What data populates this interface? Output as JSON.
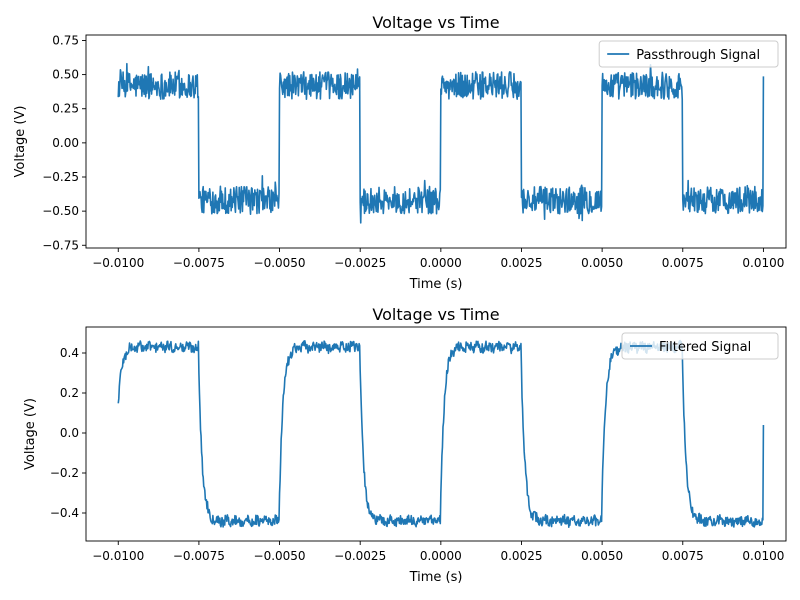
{
  "chart_data": [
    {
      "type": "line",
      "title": "Voltage vs Time",
      "xlabel": "Time (s)",
      "ylabel": "Voltage (V)",
      "xlim": [
        -0.011,
        0.0107
      ],
      "ylim": [
        -0.77,
        0.79
      ],
      "xticks": [
        -0.01,
        -0.0075,
        -0.005,
        -0.0025,
        0.0,
        0.0025,
        0.005,
        0.0075,
        0.01
      ],
      "xtick_labels": [
        "−0.0100",
        "−0.0075",
        "−0.0050",
        "−0.0025",
        "0.0000",
        "0.0025",
        "0.0050",
        "0.0075",
        "0.0100"
      ],
      "yticks": [
        -0.75,
        -0.5,
        -0.25,
        0.0,
        0.25,
        0.5,
        0.75
      ],
      "ytick_labels": [
        "−0.75",
        "−0.50",
        "−0.25",
        "0.00",
        "0.25",
        "0.50",
        "0.75"
      ],
      "grid": false,
      "legend": "top-right",
      "color": "#1f77b4",
      "series": [
        {
          "name": "Passthrough Signal",
          "model": "noisy square wave",
          "x_range": [
            -0.01,
            0.01
          ],
          "period": 0.005,
          "high_level": 0.42,
          "low_level": -0.42,
          "noise_amplitude": 0.1,
          "starts_with": "high"
        }
      ]
    },
    {
      "type": "line",
      "title": "Voltage vs Time",
      "xlabel": "Time (s)",
      "ylabel": "Voltage (V)",
      "xlim": [
        -0.011,
        0.0107
      ],
      "ylim": [
        -0.54,
        0.53
      ],
      "xticks": [
        -0.01,
        -0.0075,
        -0.005,
        -0.0025,
        0.0,
        0.0025,
        0.005,
        0.0075,
        0.01
      ],
      "xtick_labels": [
        "−0.0100",
        "−0.0075",
        "−0.0050",
        "−0.0025",
        "0.0000",
        "0.0025",
        "0.0050",
        "0.0075",
        "0.0100"
      ],
      "yticks": [
        -0.4,
        -0.2,
        0.0,
        0.2,
        0.4
      ],
      "ytick_labels": [
        "−0.4",
        "−0.2",
        "0.0",
        "0.2",
        "0.4"
      ],
      "grid": false,
      "legend": "top-right",
      "color": "#1f77b4",
      "series": [
        {
          "name": "Filtered Signal",
          "model": "low-pass filtered square wave",
          "x_range": [
            -0.01,
            0.01
          ],
          "period": 0.005,
          "high_level": 0.43,
          "low_level": -0.44,
          "noise_amplitude": 0.025,
          "start_value": 0.1,
          "end_value": 0.04,
          "starts_with": "high"
        }
      ]
    }
  ]
}
